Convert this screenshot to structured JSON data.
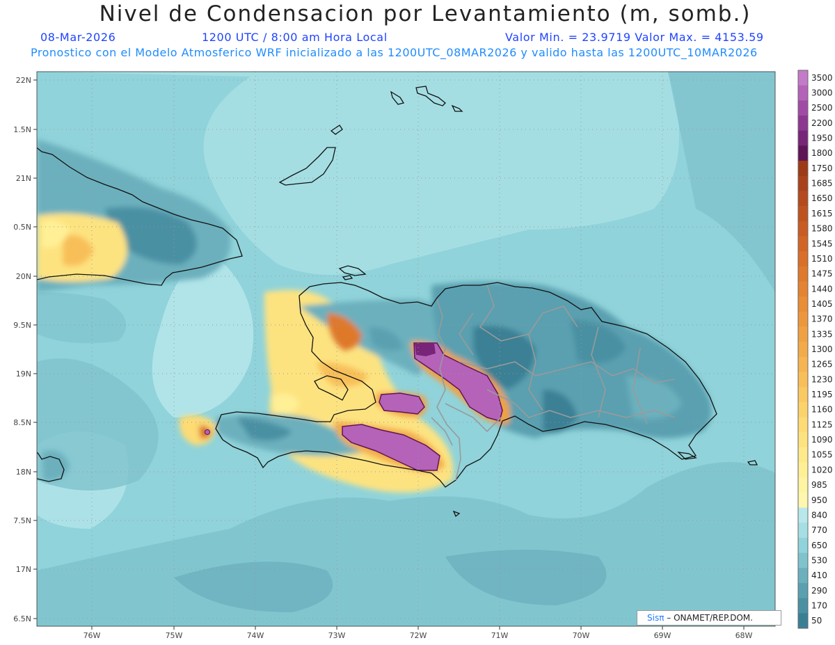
{
  "header": {
    "title": "Nivel de Condensacion por Levantamiento (m, somb.)",
    "date": "08-Mar-2026",
    "time": "1200 UTC / 8:00 am Hora Local",
    "stats": "Valor Min. = 23.9719  Valor Max. = 4153.59",
    "subtitle": "Pronostico con el Modelo Atmosferico WRF inicializado a las 1200UTC_08MAR2026 y valido hasta las  1200UTC_10MAR2026"
  },
  "axes": {
    "lat_labels": [
      "22N",
      "1.5N",
      "21N",
      "0.5N",
      "20N",
      "9.5N",
      "19N",
      "8.5N",
      "18N",
      "7.5N",
      "17N",
      "6.5N"
    ],
    "lon_labels": [
      "76W",
      "75W",
      "74W",
      "73W",
      "72W",
      "71W",
      "70W",
      "69W",
      "68W"
    ]
  },
  "colorbar": {
    "labels": [
      "3500",
      "3000",
      "2500",
      "2200",
      "1950",
      "1800",
      "1750",
      "1685",
      "1650",
      "1615",
      "1580",
      "1545",
      "1510",
      "1475",
      "1440",
      "1405",
      "1370",
      "1335",
      "1300",
      "1265",
      "1230",
      "1195",
      "1160",
      "1125",
      "1090",
      "1055",
      "1020",
      "985",
      "950",
      "840",
      "770",
      "650",
      "530",
      "410",
      "290",
      "170",
      "50"
    ],
    "colors": [
      "#c37ac9",
      "#b463b9",
      "#a24ba6",
      "#8e3791",
      "#782479",
      "#5f1457",
      "#9e3a16",
      "#a9421a",
      "#b44a1d",
      "#bf5320",
      "#c95c22",
      "#d26525",
      "#d96f28",
      "#df792c",
      "#e48331",
      "#e98d36",
      "#ed973c",
      "#f0a142",
      "#f3ab49",
      "#f6b551",
      "#f8bf59",
      "#fac962",
      "#fcd26b",
      "#fddb75",
      "#fde380",
      "#feea8b",
      "#fff096",
      "#fff4a2",
      "#fff7ae",
      "#b8e8ec",
      "#a6dfe3",
      "#90d3da",
      "#7fc3cd",
      "#6cb0bd",
      "#5aa0b0",
      "#4a90a3",
      "#3a8095"
    ]
  },
  "credit": {
    "sis": "Sisπ",
    "text": "– ONAMET/REP.DOM."
  }
}
